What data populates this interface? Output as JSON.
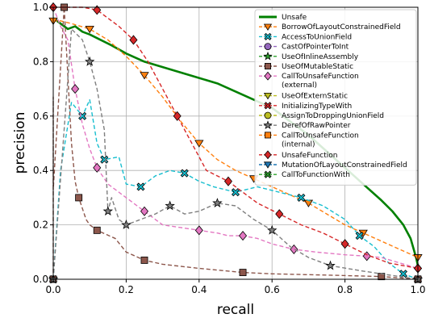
{
  "chart_data": {
    "type": "line",
    "title": "",
    "xlabel": "recall",
    "ylabel": "precision",
    "xlim": [
      0,
      1
    ],
    "ylim": [
      0,
      1
    ],
    "xticks": [
      "0.0",
      "0.2",
      "0.4",
      "0.6",
      "0.8",
      "1.0"
    ],
    "yticks": [
      "0.0",
      "0.2",
      "0.4",
      "0.6",
      "0.8",
      "1.0"
    ],
    "grid": true,
    "legend_position": "top-right",
    "series": [
      {
        "name": "Unsafe",
        "color": "#008000",
        "marker": "none",
        "dash": "solid",
        "points": [
          [
            0.0,
            0.96
          ],
          [
            0.02,
            0.94
          ],
          [
            0.04,
            0.92
          ],
          [
            0.06,
            0.93
          ],
          [
            0.08,
            0.91
          ],
          [
            0.1,
            0.9
          ],
          [
            0.13,
            0.88
          ],
          [
            0.16,
            0.86
          ],
          [
            0.2,
            0.83
          ],
          [
            0.25,
            0.8
          ],
          [
            0.3,
            0.78
          ],
          [
            0.35,
            0.76
          ],
          [
            0.4,
            0.74
          ],
          [
            0.45,
            0.72
          ],
          [
            0.5,
            0.69
          ],
          [
            0.55,
            0.66
          ],
          [
            0.6,
            0.63
          ],
          [
            0.65,
            0.58
          ],
          [
            0.7,
            0.53
          ],
          [
            0.75,
            0.47
          ],
          [
            0.8,
            0.41
          ],
          [
            0.85,
            0.35
          ],
          [
            0.9,
            0.29
          ],
          [
            0.93,
            0.25
          ],
          [
            0.96,
            0.2
          ],
          [
            0.98,
            0.15
          ],
          [
            0.995,
            0.08
          ],
          [
            1.0,
            0.05
          ]
        ]
      },
      {
        "name": "BorrowOfLayoutConstrainedField",
        "color": "#ff7f0e",
        "marker": "triangle_down",
        "dash": "dashed",
        "points": [
          [
            0.0,
            0.95
          ],
          [
            0.02,
            0.95
          ],
          [
            0.05,
            0.94
          ],
          [
            0.1,
            0.92
          ],
          [
            0.15,
            0.88
          ],
          [
            0.2,
            0.82
          ],
          [
            0.25,
            0.75
          ],
          [
            0.3,
            0.67
          ],
          [
            0.35,
            0.58
          ],
          [
            0.4,
            0.5
          ],
          [
            0.45,
            0.44
          ],
          [
            0.5,
            0.4
          ],
          [
            0.55,
            0.37
          ],
          [
            0.6,
            0.34
          ],
          [
            0.65,
            0.31
          ],
          [
            0.7,
            0.28
          ],
          [
            0.75,
            0.24
          ],
          [
            0.8,
            0.2
          ],
          [
            0.85,
            0.17
          ],
          [
            0.9,
            0.14
          ],
          [
            0.95,
            0.11
          ],
          [
            1.0,
            0.08
          ]
        ]
      },
      {
        "name": "AccessToUnionField",
        "color": "#17becf",
        "marker": "x_filled",
        "dash": "dashed",
        "points": [
          [
            0.0,
            0.0
          ],
          [
            0.02,
            0.4
          ],
          [
            0.05,
            0.65
          ],
          [
            0.08,
            0.6
          ],
          [
            0.1,
            0.66
          ],
          [
            0.12,
            0.5
          ],
          [
            0.14,
            0.44
          ],
          [
            0.18,
            0.45
          ],
          [
            0.2,
            0.35
          ],
          [
            0.24,
            0.34
          ],
          [
            0.28,
            0.38
          ],
          [
            0.32,
            0.4
          ],
          [
            0.36,
            0.39
          ],
          [
            0.4,
            0.36
          ],
          [
            0.44,
            0.34
          ],
          [
            0.5,
            0.32
          ],
          [
            0.56,
            0.34
          ],
          [
            0.62,
            0.32
          ],
          [
            0.68,
            0.3
          ],
          [
            0.74,
            0.27
          ],
          [
            0.8,
            0.22
          ],
          [
            0.84,
            0.16
          ],
          [
            0.88,
            0.12
          ],
          [
            0.92,
            0.06
          ],
          [
            0.96,
            0.02
          ],
          [
            1.0,
            0.0
          ]
        ]
      },
      {
        "name": "CastOfPointerToInt",
        "color": "#9467bd",
        "marker": "circle",
        "dash": "dashed",
        "points": []
      },
      {
        "name": "UseOfInlineAssembly",
        "color": "#2ca02c",
        "marker": "star",
        "dash": "dashed",
        "points": []
      },
      {
        "name": "UseOfMutableStatic",
        "color": "#8c564b",
        "marker": "square",
        "dash": "dashed",
        "points": [
          [
            0.0,
            0.0
          ],
          [
            0.0,
            0.67
          ],
          [
            0.0,
            0.33
          ],
          [
            0.03,
            1.0
          ],
          [
            0.05,
            0.5
          ],
          [
            0.06,
            0.36
          ],
          [
            0.07,
            0.3
          ],
          [
            0.09,
            0.22
          ],
          [
            0.1,
            0.2
          ],
          [
            0.12,
            0.18
          ],
          [
            0.17,
            0.15
          ],
          [
            0.2,
            0.1
          ],
          [
            0.25,
            0.07
          ],
          [
            0.3,
            0.055
          ],
          [
            0.4,
            0.04
          ],
          [
            0.52,
            0.025
          ],
          [
            0.6,
            0.02
          ],
          [
            0.76,
            0.015
          ],
          [
            0.9,
            0.01
          ],
          [
            1.0,
            0.0
          ]
        ]
      },
      {
        "name": "CallToUnsafeFunction\n(external)",
        "color": "#e377c2",
        "marker": "diamond",
        "dash": "dashed",
        "points": [
          [
            0.0,
            1.0
          ],
          [
            0.02,
            0.93
          ],
          [
            0.04,
            0.88
          ],
          [
            0.06,
            0.7
          ],
          [
            0.08,
            0.57
          ],
          [
            0.1,
            0.48
          ],
          [
            0.12,
            0.41
          ],
          [
            0.15,
            0.35
          ],
          [
            0.2,
            0.3
          ],
          [
            0.25,
            0.25
          ],
          [
            0.3,
            0.2
          ],
          [
            0.35,
            0.19
          ],
          [
            0.4,
            0.18
          ],
          [
            0.45,
            0.17
          ],
          [
            0.48,
            0.16
          ],
          [
            0.52,
            0.16
          ],
          [
            0.56,
            0.15
          ],
          [
            0.6,
            0.13
          ],
          [
            0.66,
            0.11
          ],
          [
            0.72,
            0.1
          ],
          [
            0.8,
            0.09
          ],
          [
            0.86,
            0.085
          ],
          [
            0.9,
            0.08
          ],
          [
            0.95,
            0.06
          ],
          [
            1.0,
            0.04
          ]
        ]
      },
      {
        "name": "UseOfExternStatic",
        "color": "#bcbd22",
        "marker": "triangle_down",
        "dash": "dashed",
        "points": []
      },
      {
        "name": "InitializingTypeWith",
        "color": "#d62728",
        "marker": "x_filled",
        "dash": "dashed",
        "points": []
      },
      {
        "name": "AssignToDroppingUnionField",
        "color": "#bcbd22",
        "marker": "circle",
        "dash": "dashed",
        "points": []
      },
      {
        "name": "DerefOfRawPointer",
        "color": "#7f7f7f",
        "marker": "star",
        "dash": "dashed",
        "points": [
          [
            0.0,
            0.0
          ],
          [
            0.05,
            0.92
          ],
          [
            0.08,
            0.88
          ],
          [
            0.1,
            0.8
          ],
          [
            0.12,
            0.7
          ],
          [
            0.14,
            0.55
          ],
          [
            0.15,
            0.25
          ],
          [
            0.16,
            0.3
          ],
          [
            0.18,
            0.22
          ],
          [
            0.2,
            0.2
          ],
          [
            0.24,
            0.22
          ],
          [
            0.28,
            0.24
          ],
          [
            0.32,
            0.27
          ],
          [
            0.36,
            0.24
          ],
          [
            0.4,
            0.25
          ],
          [
            0.45,
            0.28
          ],
          [
            0.5,
            0.27
          ],
          [
            0.55,
            0.22
          ],
          [
            0.6,
            0.18
          ],
          [
            0.65,
            0.12
          ],
          [
            0.7,
            0.08
          ],
          [
            0.76,
            0.05
          ],
          [
            0.85,
            0.03
          ],
          [
            0.95,
            0.01
          ],
          [
            1.0,
            0.0
          ]
        ]
      },
      {
        "name": "CallToUnsafeFunction\n(internal)",
        "color": "#ff7f0e",
        "marker": "square",
        "dash": "dashed",
        "points": []
      },
      {
        "name": "UnsafeFunction",
        "color": "#d62728",
        "marker": "diamond",
        "dash": "dashed",
        "points": [
          [
            0.0,
            1.0
          ],
          [
            0.03,
            1.0
          ],
          [
            0.08,
            1.0
          ],
          [
            0.12,
            0.99
          ],
          [
            0.15,
            0.96
          ],
          [
            0.18,
            0.93
          ],
          [
            0.22,
            0.88
          ],
          [
            0.26,
            0.8
          ],
          [
            0.3,
            0.7
          ],
          [
            0.34,
            0.6
          ],
          [
            0.38,
            0.5
          ],
          [
            0.42,
            0.4
          ],
          [
            0.48,
            0.36
          ],
          [
            0.52,
            0.32
          ],
          [
            0.56,
            0.28
          ],
          [
            0.62,
            0.24
          ],
          [
            0.68,
            0.2
          ],
          [
            0.74,
            0.17
          ],
          [
            0.8,
            0.13
          ],
          [
            0.86,
            0.09
          ],
          [
            0.92,
            0.06
          ],
          [
            1.0,
            0.04
          ]
        ]
      },
      {
        "name": "MutationOfLayoutConstrainedField",
        "color": "#1f77b4",
        "marker": "triangle_down",
        "dash": "dashed",
        "points": []
      },
      {
        "name": "CallToFunctionWith",
        "color": "#2ca02c",
        "marker": "x_filled",
        "dash": "dashed",
        "points": []
      }
    ]
  }
}
